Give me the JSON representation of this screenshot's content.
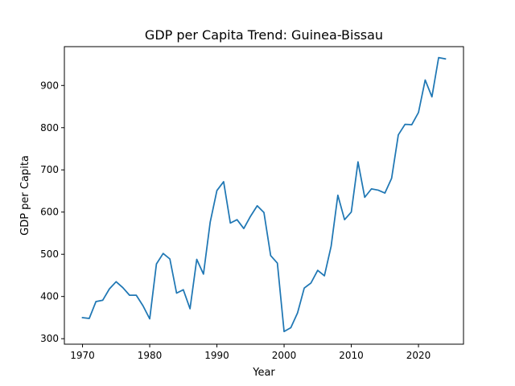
{
  "chart_data": {
    "type": "line",
    "title": "GDP per Capita Trend: Guinea-Bissau",
    "xlabel": "Year",
    "ylabel": "GDP per Capita",
    "xlim": [
      1967.3,
      2026.7
    ],
    "ylim": [
      287,
      992
    ],
    "xticks": [
      1970,
      1980,
      1990,
      2000,
      2010,
      2020
    ],
    "yticks": [
      300,
      400,
      500,
      600,
      700,
      800,
      900
    ],
    "grid": false,
    "series": [
      {
        "color": "#1f77b4",
        "x": [
          1970,
          1971,
          1972,
          1973,
          1974,
          1975,
          1976,
          1977,
          1978,
          1979,
          1980,
          1981,
          1982,
          1983,
          1984,
          1985,
          1986,
          1987,
          1988,
          1989,
          1990,
          1991,
          1992,
          1993,
          1994,
          1995,
          1996,
          1997,
          1998,
          1999,
          2000,
          2001,
          2002,
          2003,
          2004,
          2005,
          2006,
          2007,
          2008,
          2009,
          2010,
          2011,
          2012,
          2013,
          2014,
          2015,
          2016,
          2017,
          2018,
          2019,
          2020,
          2021,
          2022,
          2023,
          2024
        ],
        "y": [
          350,
          348,
          388,
          391,
          418,
          435,
          421,
          403,
          403,
          378,
          347,
          477,
          502,
          489,
          408,
          416,
          371,
          488,
          453,
          576,
          651,
          672,
          574,
          582,
          561,
          590,
          615,
          599,
          497,
          479,
          317,
          326,
          361,
          420,
          432,
          462,
          449,
          519,
          640,
          582,
          600,
          719,
          635,
          655,
          652,
          645,
          680,
          783,
          808,
          807,
          836,
          913,
          873,
          966,
          963
        ]
      }
    ]
  }
}
